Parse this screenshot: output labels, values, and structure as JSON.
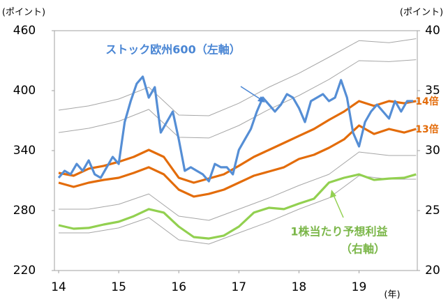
{
  "chart_data": {
    "type": "line",
    "y_label": "(ポイント)",
    "y2_label": "(ポイント)",
    "x_label": "(年)",
    "xlim": [
      13.93,
      19.97
    ],
    "xticks": [
      14,
      15,
      16,
      17,
      18,
      19
    ],
    "ylim": [
      220,
      460
    ],
    "yticks": [
      220,
      280,
      340,
      400,
      460
    ],
    "y2lim": [
      20,
      40
    ],
    "y2ticks": [
      20,
      25,
      30,
      35,
      40
    ],
    "annotations": [
      "ストック欧州600（左軸）",
      "1株当たり予想利益",
      "（右軸）"
    ],
    "series": [
      {
        "color": "#a6a6a6",
        "x": [
          14,
          14.5,
          15,
          15.5,
          16,
          16.5,
          17,
          17.5,
          18,
          18.5,
          19,
          19.5,
          19.95
        ],
        "values": [
          380.5,
          384.7,
          391.6,
          403.5,
          375.6,
          374.9,
          387.4,
          403.5,
          417.4,
          433.5,
          450,
          448,
          452
        ]
      },
      {
        "color": "#a6a6a6",
        "x": [
          14,
          14.5,
          15,
          15.5,
          16,
          16.5,
          17,
          17.5,
          18,
          18.5,
          19,
          19.5,
          19.95
        ],
        "values": [
          358.1,
          362.3,
          369.3,
          381.2,
          353.3,
          352.6,
          365.1,
          381.2,
          395.1,
          411.2,
          430,
          429,
          431
        ]
      },
      {
        "color": "#a6a6a6",
        "x": [
          14,
          14.5,
          15,
          15.5,
          16,
          16.5,
          17,
          17.5,
          18,
          18.5,
          19,
          19.5,
          19.95
        ],
        "values": [
          281.4,
          281.4,
          286.3,
          296.7,
          274.4,
          270.2,
          281.4,
          292.6,
          305.1,
          316.3,
          338.6,
          335.1,
          335.1
        ]
      },
      {
        "color": "#a6a6a6",
        "x": [
          14,
          14.5,
          15,
          15.5,
          16,
          16.5,
          17,
          17.5,
          18,
          18.5,
          19,
          19.5,
          19.95
        ],
        "values": [
          257.7,
          257.7,
          262.6,
          273.0,
          250.7,
          246.5,
          257.7,
          268.8,
          281.4,
          292.6,
          314.9,
          311.4,
          311.4
        ]
      },
      {
        "name": "14倍",
        "color": "#e36c0a",
        "x": [
          14,
          14.25,
          14.5,
          14.75,
          15,
          15.25,
          15.5,
          15.75,
          16,
          16.25,
          16.5,
          16.75,
          17,
          17.25,
          17.5,
          17.75,
          18,
          18.25,
          18.5,
          18.75,
          19,
          19.25,
          19.5,
          19.75,
          19.95
        ],
        "values": [
          317.7,
          314.9,
          321.9,
          324.7,
          328.8,
          333.7,
          340.7,
          333.7,
          312.8,
          307.9,
          312.1,
          316.3,
          324.7,
          333.7,
          340.7,
          347.7,
          354.7,
          361.6,
          370.7,
          379.1,
          389.5,
          384.7,
          389.5,
          387.4,
          389.5
        ]
      },
      {
        "name": "13倍",
        "color": "#e36c0a",
        "x": [
          14,
          14.25,
          14.5,
          14.75,
          15,
          15.25,
          15.5,
          15.75,
          16,
          16.25,
          16.5,
          16.75,
          17,
          17.25,
          17.5,
          17.75,
          18,
          18.25,
          18.5,
          18.75,
          19,
          19.25,
          19.5,
          19.75,
          19.95
        ],
        "values": [
          307.9,
          303.7,
          307.9,
          310.7,
          312.8,
          317.7,
          323.3,
          316.3,
          300.9,
          294.0,
          296.7,
          300.9,
          307.9,
          314.9,
          319.1,
          323.3,
          331.6,
          335.8,
          342.8,
          351.2,
          365.1,
          356.7,
          361.6,
          358.1,
          361.6
        ]
      },
      {
        "name": "1株当たり予想利益（右軸）",
        "color": "#92d050",
        "axis": "y2",
        "x": [
          14,
          14.25,
          14.5,
          14.75,
          15,
          15.25,
          15.5,
          15.75,
          16,
          16.25,
          16.5,
          16.75,
          17,
          17.25,
          17.5,
          17.75,
          18,
          18.25,
          18.5,
          18.75,
          19,
          19.25,
          19.5,
          19.75,
          19.95
        ],
        "values": [
          23.78,
          23.49,
          23.55,
          23.84,
          24.07,
          24.53,
          25.12,
          24.83,
          23.66,
          22.79,
          22.67,
          22.91,
          23.66,
          24.83,
          25.23,
          25.12,
          25.58,
          25.99,
          27.33,
          27.73,
          28.02,
          27.56,
          27.67,
          27.73,
          28.02
        ]
      },
      {
        "name": "ストック欧州600（左軸）",
        "color": "#558ed5",
        "x": [
          14.0,
          14.1,
          14.2,
          14.3,
          14.4,
          14.5,
          14.6,
          14.7,
          14.8,
          14.9,
          15.0,
          15.1,
          15.2,
          15.3,
          15.4,
          15.5,
          15.6,
          15.7,
          15.8,
          15.9,
          16.0,
          16.1,
          16.2,
          16.3,
          16.4,
          16.5,
          16.6,
          16.7,
          16.8,
          16.9,
          17.0,
          17.1,
          17.2,
          17.3,
          17.4,
          17.5,
          17.6,
          17.7,
          17.8,
          17.9,
          18.0,
          18.1,
          18.2,
          18.3,
          18.4,
          18.5,
          18.6,
          18.7,
          18.8,
          18.9,
          19.0,
          19.1,
          19.2,
          19.3,
          19.4,
          19.5,
          19.6,
          19.7,
          19.8,
          19.9
        ],
        "values": [
          312.8,
          319.8,
          316.3,
          326.7,
          319.8,
          330.2,
          316.3,
          312.8,
          323.3,
          333.7,
          326.7,
          368.6,
          389.5,
          407,
          414,
          393,
          403.5,
          358.1,
          368.6,
          379.1,
          351.2,
          319.8,
          323.3,
          319.8,
          316.3,
          309.3,
          326.7,
          323.3,
          323.3,
          316.3,
          340.7,
          351.2,
          361.6,
          379.1,
          393,
          386,
          379.1,
          386,
          396.5,
          393,
          382.6,
          368.6,
          389.5,
          393,
          396.5,
          389.5,
          393,
          410.5,
          393,
          358.1,
          344.2,
          368.6,
          379.1,
          386,
          379.1,
          372.1,
          389.5,
          379.1,
          389.5,
          389.5
        ]
      }
    ]
  }
}
